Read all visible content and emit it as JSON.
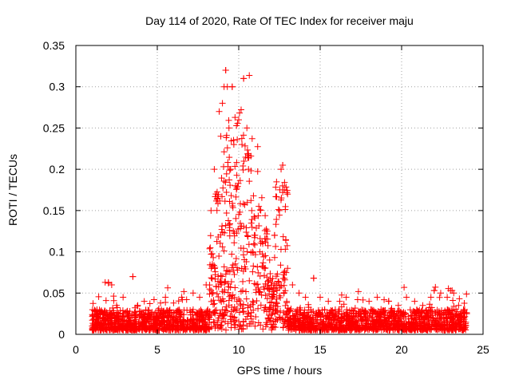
{
  "chart_data": {
    "type": "scatter",
    "title": "Day 114 of 2020, Rate Of TEC Index for receiver maju",
    "xlabel": "GPS time / hours",
    "ylabel": "ROTI / TECUs",
    "xlim": [
      0,
      25
    ],
    "ylim": [
      0,
      0.35
    ],
    "xticks": [
      0,
      5,
      10,
      15,
      20,
      25
    ],
    "xtick_labels": [
      "0",
      "5",
      "10",
      "15",
      "20",
      "25"
    ],
    "yticks": [
      0,
      0.05,
      0.1,
      0.15,
      0.2,
      0.25,
      0.3,
      0.35
    ],
    "ytick_labels": [
      "0",
      "0.05",
      "0.1",
      "0.15",
      "0.2",
      "0.25",
      "0.3",
      "0.35"
    ],
    "grid": true,
    "marker": "+",
    "color": "#ff0000",
    "series": [
      {
        "name": "ROTI",
        "x_range": [
          1.0,
          24.0
        ],
        "baseline_range": [
          0.005,
          0.03
        ],
        "peaks": [
          {
            "x": 9.2,
            "y": 0.32
          },
          {
            "x": 9.6,
            "y": 0.3
          },
          {
            "x": 10.3,
            "y": 0.31
          },
          {
            "x": 12.7,
            "y": 0.205
          },
          {
            "x": 12.7,
            "y": 0.175
          },
          {
            "x": 12.2,
            "y": 0.12
          },
          {
            "x": 14.6,
            "y": 0.068
          },
          {
            "x": 3.5,
            "y": 0.07
          },
          {
            "x": 2.0,
            "y": 0.063
          },
          {
            "x": 23.1,
            "y": 0.053
          },
          {
            "x": 22.0,
            "y": 0.053
          }
        ],
        "points": [
          [
            1.0,
            0.01
          ],
          [
            1.3,
            0.03
          ],
          [
            1.8,
            0.063
          ],
          [
            2.0,
            0.062
          ],
          [
            2.2,
            0.06
          ],
          [
            2.5,
            0.035
          ],
          [
            2.9,
            0.045
          ],
          [
            3.2,
            0.025
          ],
          [
            3.5,
            0.07
          ],
          [
            3.8,
            0.035
          ],
          [
            4.2,
            0.04
          ],
          [
            4.8,
            0.042
          ],
          [
            5.2,
            0.038
          ],
          [
            5.5,
            0.045
          ],
          [
            6.0,
            0.038
          ],
          [
            6.5,
            0.045
          ],
          [
            6.8,
            0.042
          ],
          [
            7.2,
            0.05
          ],
          [
            7.6,
            0.045
          ],
          [
            8.0,
            0.06
          ],
          [
            8.3,
            0.15
          ],
          [
            8.5,
            0.2
          ],
          [
            8.6,
            0.17
          ],
          [
            8.8,
            0.27
          ],
          [
            8.9,
            0.24
          ],
          [
            9.0,
            0.28
          ],
          [
            9.1,
            0.3
          ],
          [
            9.2,
            0.32
          ],
          [
            9.3,
            0.3
          ],
          [
            9.4,
            0.25
          ],
          [
            9.5,
            0.2
          ],
          [
            9.6,
            0.3
          ],
          [
            9.7,
            0.23
          ],
          [
            9.8,
            0.18
          ],
          [
            10.0,
            0.26
          ],
          [
            10.2,
            0.23
          ],
          [
            10.3,
            0.31
          ],
          [
            10.5,
            0.25
          ],
          [
            10.6,
            0.2
          ],
          [
            10.8,
            0.15
          ],
          [
            11.0,
            0.12
          ],
          [
            11.3,
            0.1
          ],
          [
            11.6,
            0.08
          ],
          [
            11.9,
            0.09
          ],
          [
            12.2,
            0.12
          ],
          [
            12.5,
            0.15
          ],
          [
            12.6,
            0.2
          ],
          [
            12.7,
            0.205
          ],
          [
            12.8,
            0.175
          ],
          [
            13.0,
            0.08
          ],
          [
            13.3,
            0.06
          ],
          [
            13.7,
            0.05
          ],
          [
            14.1,
            0.045
          ],
          [
            14.6,
            0.068
          ],
          [
            15.0,
            0.045
          ],
          [
            15.5,
            0.04
          ],
          [
            16.2,
            0.04
          ],
          [
            16.6,
            0.045
          ],
          [
            17.3,
            0.042
          ],
          [
            18.0,
            0.04
          ],
          [
            18.5,
            0.045
          ],
          [
            19.2,
            0.04
          ],
          [
            19.8,
            0.035
          ],
          [
            20.3,
            0.045
          ],
          [
            20.8,
            0.04
          ],
          [
            21.3,
            0.035
          ],
          [
            21.8,
            0.045
          ],
          [
            22.0,
            0.053
          ],
          [
            22.4,
            0.05
          ],
          [
            22.8,
            0.045
          ],
          [
            23.0,
            0.053
          ],
          [
            23.2,
            0.05
          ],
          [
            23.5,
            0.035
          ],
          [
            23.8,
            0.03
          ],
          [
            24.0,
            0.025
          ]
        ]
      }
    ]
  }
}
